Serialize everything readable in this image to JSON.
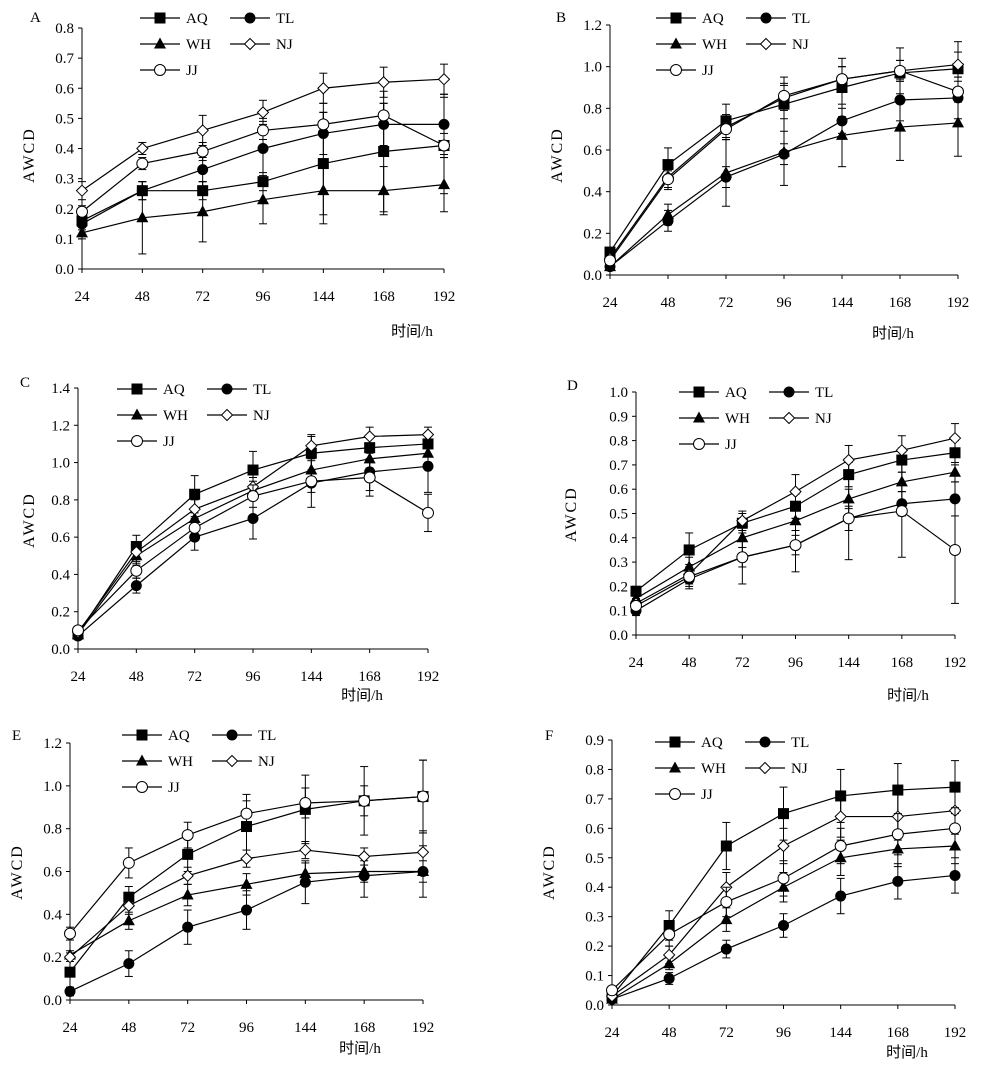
{
  "xlabel": "时间/h",
  "ylabel": "AWCD",
  "legend_labels": [
    "AQ",
    "TL",
    "WH",
    "NJ",
    "JJ"
  ],
  "chart_data": [
    {
      "panel": "A",
      "type": "line",
      "categories": [
        "24",
        "48",
        "72",
        "96",
        "144",
        "168",
        "192"
      ],
      "xlabel": "时间/h",
      "ylabel": "AWCD",
      "ylim": [
        0,
        0.8
      ],
      "yticks": [
        "0.0",
        "0.1",
        "0.2",
        "0.3",
        "0.4",
        "0.5",
        "0.6",
        "0.7",
        "0.8"
      ],
      "series": [
        {
          "name": "AQ",
          "marker": "square",
          "values": [
            0.16,
            0.26,
            0.26,
            0.29,
            0.35,
            0.39,
            0.41
          ],
          "errors": [
            0.02,
            0.03,
            0.03,
            0.03,
            0.2,
            0.2,
            0.16
          ]
        },
        {
          "name": "TL",
          "marker": "circle",
          "values": [
            0.15,
            0.26,
            0.33,
            0.4,
            0.45,
            0.48,
            0.48
          ],
          "errors": [
            0.02,
            0.03,
            0.04,
            0.1,
            0.07,
            0.07,
            0.1
          ]
        },
        {
          "name": "WH",
          "marker": "triangle",
          "values": [
            0.12,
            0.17,
            0.19,
            0.23,
            0.26,
            0.26,
            0.28
          ],
          "errors": [
            0.02,
            0.12,
            0.1,
            0.08,
            0.08,
            0.08,
            0.09
          ]
        },
        {
          "name": "NJ",
          "marker": "diamond",
          "values": [
            0.26,
            0.4,
            0.46,
            0.52,
            0.6,
            0.62,
            0.63
          ],
          "errors": [
            0.03,
            0.02,
            0.05,
            0.04,
            0.05,
            0.05,
            0.05
          ]
        },
        {
          "name": "JJ",
          "marker": "open-circle",
          "values": [
            0.19,
            0.35,
            0.39,
            0.46,
            0.48,
            0.51,
            0.41
          ],
          "errors": [
            0.02,
            0.02,
            0.03,
            0.03,
            0.04,
            0.04,
            0.04
          ]
        }
      ]
    },
    {
      "panel": "B",
      "type": "line",
      "categories": [
        "24",
        "48",
        "72",
        "96",
        "144",
        "168",
        "192"
      ],
      "xlabel": "时间/h",
      "ylabel": "AWCD",
      "ylim": [
        0,
        1.2
      ],
      "yticks": [
        "0.0",
        "0.2",
        "0.4",
        "0.6",
        "0.8",
        "1.0",
        "1.2"
      ],
      "series": [
        {
          "name": "AQ",
          "marker": "square",
          "values": [
            0.11,
            0.53,
            0.74,
            0.82,
            0.9,
            0.97,
            0.99
          ],
          "errors": [
            0.02,
            0.08,
            0.08,
            0.13,
            0.14,
            0.12,
            0.13
          ]
        },
        {
          "name": "TL",
          "marker": "circle",
          "values": [
            0.04,
            0.26,
            0.47,
            0.58,
            0.74,
            0.84,
            0.85
          ],
          "errors": [
            0.01,
            0.05,
            0.05,
            0.05,
            0.06,
            0.1,
            0.1
          ]
        },
        {
          "name": "WH",
          "marker": "triangle",
          "values": [
            0.04,
            0.29,
            0.49,
            0.59,
            0.67,
            0.71,
            0.73
          ],
          "errors": [
            0.01,
            0.05,
            0.16,
            0.16,
            0.15,
            0.16,
            0.16
          ]
        },
        {
          "name": "NJ",
          "marker": "diamond",
          "values": [
            0.08,
            0.47,
            0.71,
            0.85,
            0.94,
            0.98,
            1.01
          ],
          "errors": [
            0.02,
            0.06,
            0.06,
            0.06,
            0.06,
            0.05,
            0.06
          ]
        },
        {
          "name": "JJ",
          "marker": "open-circle",
          "values": [
            0.07,
            0.46,
            0.7,
            0.86,
            0.94,
            0.98,
            0.88
          ],
          "errors": [
            0.01,
            0.04,
            0.05,
            0.06,
            0.06,
            0.05,
            0.05
          ]
        }
      ]
    },
    {
      "panel": "C",
      "type": "line",
      "categories": [
        "24",
        "48",
        "72",
        "96",
        "144",
        "168",
        "192"
      ],
      "xlabel": "时间/h",
      "ylabel": "AWCD",
      "ylim": [
        0,
        1.4
      ],
      "yticks": [
        "0.0",
        "0.2",
        "0.4",
        "0.6",
        "0.8",
        "1.0",
        "1.2",
        "1.4"
      ],
      "series": [
        {
          "name": "AQ",
          "marker": "square",
          "values": [
            0.08,
            0.55,
            0.83,
            0.96,
            1.05,
            1.08,
            1.1
          ],
          "errors": [
            0.02,
            0.06,
            0.1,
            0.1,
            0.1,
            0.06,
            0.06
          ]
        },
        {
          "name": "TL",
          "marker": "circle",
          "values": [
            0.07,
            0.34,
            0.6,
            0.7,
            0.89,
            0.95,
            0.98
          ],
          "errors": [
            0.02,
            0.04,
            0.07,
            0.11,
            0.13,
            0.1,
            0.14
          ]
        },
        {
          "name": "WH",
          "marker": "triangle",
          "values": [
            0.08,
            0.5,
            0.7,
            0.85,
            0.96,
            1.02,
            1.05
          ],
          "errors": [
            0.02,
            0.05,
            0.05,
            0.05,
            0.05,
            0.05,
            0.05
          ]
        },
        {
          "name": "NJ",
          "marker": "diamond",
          "values": [
            0.09,
            0.52,
            0.75,
            0.87,
            1.09,
            1.14,
            1.15
          ],
          "errors": [
            0.02,
            0.05,
            0.05,
            0.05,
            0.05,
            0.05,
            0.04
          ]
        },
        {
          "name": "JJ",
          "marker": "open-circle",
          "values": [
            0.1,
            0.42,
            0.65,
            0.82,
            0.9,
            0.92,
            0.73
          ],
          "errors": [
            0.02,
            0.04,
            0.06,
            0.06,
            0.06,
            0.1,
            0.1
          ]
        }
      ]
    },
    {
      "panel": "D",
      "type": "line",
      "categories": [
        "24",
        "48",
        "72",
        "96",
        "144",
        "168",
        "192"
      ],
      "xlabel": "时间/h",
      "ylabel": "AWCD",
      "ylim": [
        0,
        1.0
      ],
      "yticks": [
        "0.0",
        "0.1",
        "0.2",
        "0.3",
        "0.4",
        "0.5",
        "0.6",
        "0.7",
        "0.8",
        "0.9",
        "1.0"
      ],
      "series": [
        {
          "name": "AQ",
          "marker": "square",
          "values": [
            0.18,
            0.35,
            0.46,
            0.53,
            0.66,
            0.72,
            0.75
          ],
          "errors": [
            0.02,
            0.07,
            0.04,
            0.05,
            0.05,
            0.05,
            0.05
          ]
        },
        {
          "name": "TL",
          "marker": "circle",
          "values": [
            0.1,
            0.23,
            0.32,
            0.37,
            0.48,
            0.54,
            0.56
          ],
          "errors": [
            0.02,
            0.04,
            0.04,
            0.04,
            0.05,
            0.05,
            0.07
          ]
        },
        {
          "name": "WH",
          "marker": "triangle",
          "values": [
            0.15,
            0.28,
            0.4,
            0.47,
            0.56,
            0.63,
            0.67
          ],
          "errors": [
            0.02,
            0.04,
            0.04,
            0.04,
            0.04,
            0.04,
            0.04
          ]
        },
        {
          "name": "NJ",
          "marker": "diamond",
          "values": [
            0.13,
            0.25,
            0.47,
            0.59,
            0.72,
            0.76,
            0.81
          ],
          "errors": [
            0.02,
            0.04,
            0.04,
            0.07,
            0.06,
            0.06,
            0.06
          ]
        },
        {
          "name": "JJ",
          "marker": "open-circle",
          "values": [
            0.12,
            0.24,
            0.32,
            0.37,
            0.48,
            0.51,
            0.35
          ],
          "errors": [
            0.02,
            0.04,
            0.11,
            0.11,
            0.17,
            0.19,
            0.22
          ]
        }
      ]
    },
    {
      "panel": "E",
      "type": "line",
      "categories": [
        "24",
        "48",
        "72",
        "96",
        "144",
        "168",
        "192"
      ],
      "xlabel": "时间/h",
      "ylabel": "AWCD",
      "ylim": [
        0,
        1.2
      ],
      "yticks": [
        "0.0",
        "0.2",
        "0.4",
        "0.6",
        "0.8",
        "1.0",
        "1.2"
      ],
      "series": [
        {
          "name": "AQ",
          "marker": "square",
          "values": [
            0.13,
            0.48,
            0.68,
            0.81,
            0.89,
            0.93,
            0.95
          ],
          "errors": [
            0.02,
            0.05,
            0.08,
            0.15,
            0.16,
            0.16,
            0.17
          ]
        },
        {
          "name": "TL",
          "marker": "circle",
          "values": [
            0.04,
            0.17,
            0.34,
            0.42,
            0.55,
            0.58,
            0.6
          ],
          "errors": [
            0.02,
            0.06,
            0.08,
            0.09,
            0.1,
            0.1,
            0.12
          ]
        },
        {
          "name": "WH",
          "marker": "triangle",
          "values": [
            0.21,
            0.37,
            0.49,
            0.54,
            0.59,
            0.6,
            0.6
          ],
          "errors": [
            0.02,
            0.04,
            0.05,
            0.05,
            0.05,
            0.05,
            0.05
          ]
        },
        {
          "name": "NJ",
          "marker": "diamond",
          "values": [
            0.2,
            0.44,
            0.58,
            0.66,
            0.7,
            0.67,
            0.69
          ],
          "errors": [
            0.02,
            0.04,
            0.04,
            0.04,
            0.04,
            0.04,
            0.1
          ]
        },
        {
          "name": "JJ",
          "marker": "open-circle",
          "values": [
            0.31,
            0.64,
            0.77,
            0.87,
            0.92,
            0.93,
            0.95
          ],
          "errors": [
            0.03,
            0.07,
            0.06,
            0.06,
            0.07,
            0.07,
            0.17
          ]
        }
      ]
    },
    {
      "panel": "F",
      "type": "line",
      "categories": [
        "24",
        "48",
        "72",
        "96",
        "144",
        "168",
        "192"
      ],
      "xlabel": "时间/h",
      "ylabel": "AWCD",
      "ylim": [
        0,
        0.9
      ],
      "yticks": [
        "0.0",
        "0.1",
        "0.2",
        "0.3",
        "0.4",
        "0.5",
        "0.6",
        "0.7",
        "0.8",
        "0.9"
      ],
      "series": [
        {
          "name": "AQ",
          "marker": "square",
          "values": [
            0.03,
            0.27,
            0.54,
            0.65,
            0.71,
            0.73,
            0.74
          ],
          "errors": [
            0.01,
            0.05,
            0.08,
            0.09,
            0.09,
            0.09,
            0.09
          ]
        },
        {
          "name": "TL",
          "marker": "circle",
          "values": [
            0.02,
            0.09,
            0.19,
            0.27,
            0.37,
            0.42,
            0.44
          ],
          "errors": [
            0.01,
            0.02,
            0.03,
            0.04,
            0.06,
            0.06,
            0.06
          ]
        },
        {
          "name": "WH",
          "marker": "triangle",
          "values": [
            0.02,
            0.14,
            0.29,
            0.4,
            0.5,
            0.53,
            0.54
          ],
          "errors": [
            0.01,
            0.02,
            0.04,
            0.05,
            0.06,
            0.06,
            0.06
          ]
        },
        {
          "name": "NJ",
          "marker": "diamond",
          "values": [
            0.03,
            0.17,
            0.4,
            0.54,
            0.64,
            0.64,
            0.66
          ],
          "errors": [
            0.01,
            0.03,
            0.05,
            0.06,
            0.07,
            0.08,
            0.08
          ]
        },
        {
          "name": "JJ",
          "marker": "open-circle",
          "values": [
            0.05,
            0.24,
            0.35,
            0.43,
            0.54,
            0.58,
            0.6
          ],
          "errors": [
            0.01,
            0.04,
            0.05,
            0.06,
            0.06,
            0.07,
            0.07
          ]
        }
      ]
    }
  ]
}
